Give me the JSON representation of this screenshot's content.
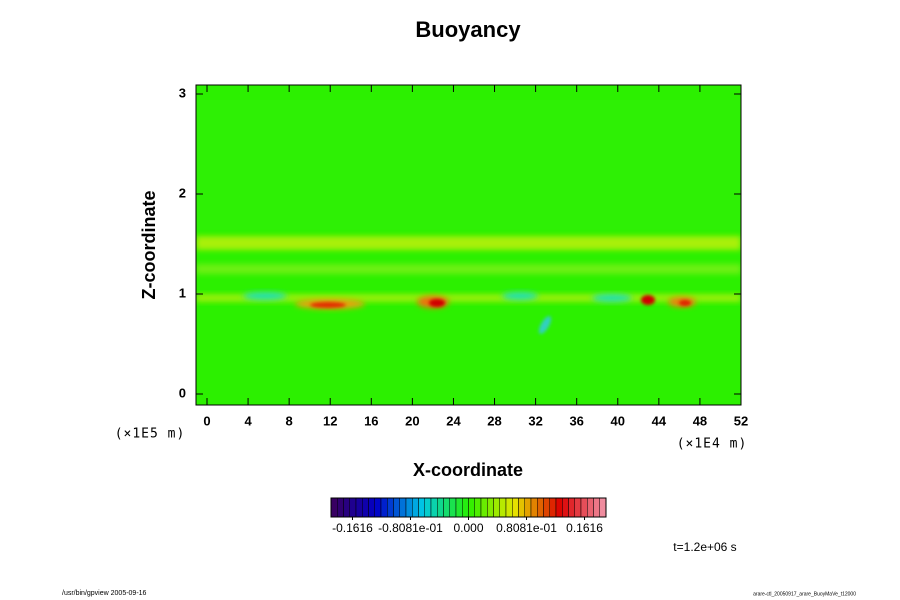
{
  "chart_data": {
    "type": "contour",
    "title": "Buoyancy",
    "xlabel": "X-coordinate",
    "ylabel": "Z-coordinate",
    "xunit": "(×1E4 m)",
    "yunit": "(×1E5 m)",
    "xlim": [
      -1.07,
      52
    ],
    "xticks": [
      0,
      4,
      8,
      12,
      16,
      20,
      24,
      28,
      32,
      36,
      40,
      44,
      48,
      52
    ],
    "ylim": [
      -0.11,
      3.09
    ],
    "yticks": [
      0,
      1,
      2,
      3
    ],
    "colorbar": {
      "lim": [
        -0.1915,
        0.1915
      ],
      "ticks": [
        {
          "value": -0.1616,
          "label": "-0.1616"
        },
        {
          "value": -0.08081,
          "label": "-0.8081e-01"
        },
        {
          "value": 0,
          "label": "0.000"
        },
        {
          "value": 0.08081,
          "label": "0.8081e-01"
        },
        {
          "value": 0.1616,
          "label": "0.1616"
        }
      ]
    },
    "annotation": "t=1.2e+06 s",
    "footer_left": "/usr/bin/gpview 2005-09-16",
    "footer_right": "arare-ctl_20050917_arare_BuoyMaVe_t12000"
  }
}
